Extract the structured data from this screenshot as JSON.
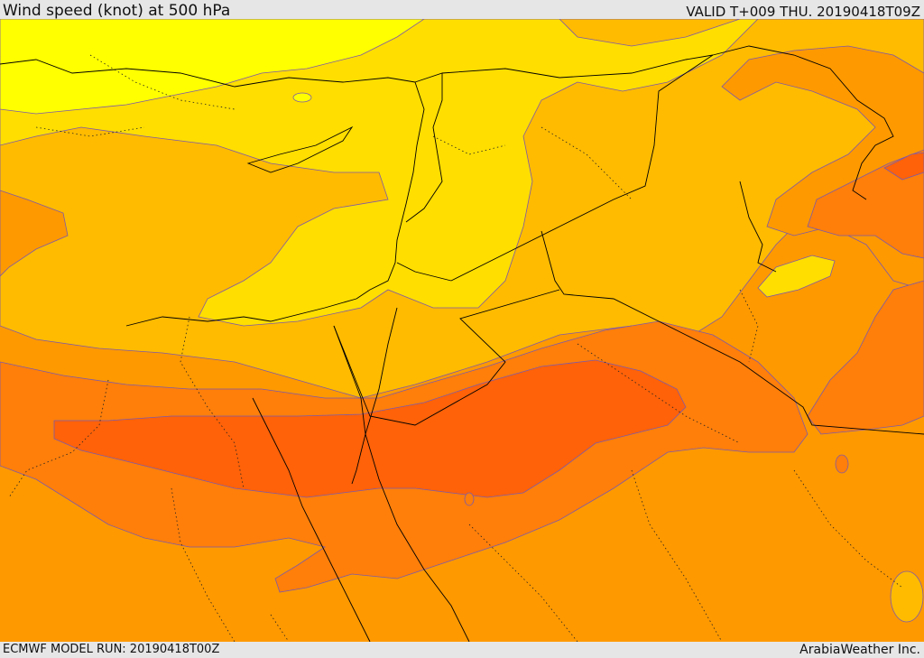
{
  "header": {
    "title": "Wind speed (knot) at 500 hPa",
    "valid_time": "VALID T+009 THU. 20190418T09Z"
  },
  "footer": {
    "model_run": "ECMWF MODEL RUN: 20190418T00Z",
    "provider": "ArabiaWeather Inc."
  },
  "colors": {
    "band_1": "#ffff00",
    "band_2": "#ffde00",
    "band_3": "#ffbb00",
    "band_4": "#ff9900",
    "band_5": "#ff7f0a",
    "band_6": "#ff6208",
    "contour": "#7d5aa8",
    "coastline": "#000000"
  }
}
